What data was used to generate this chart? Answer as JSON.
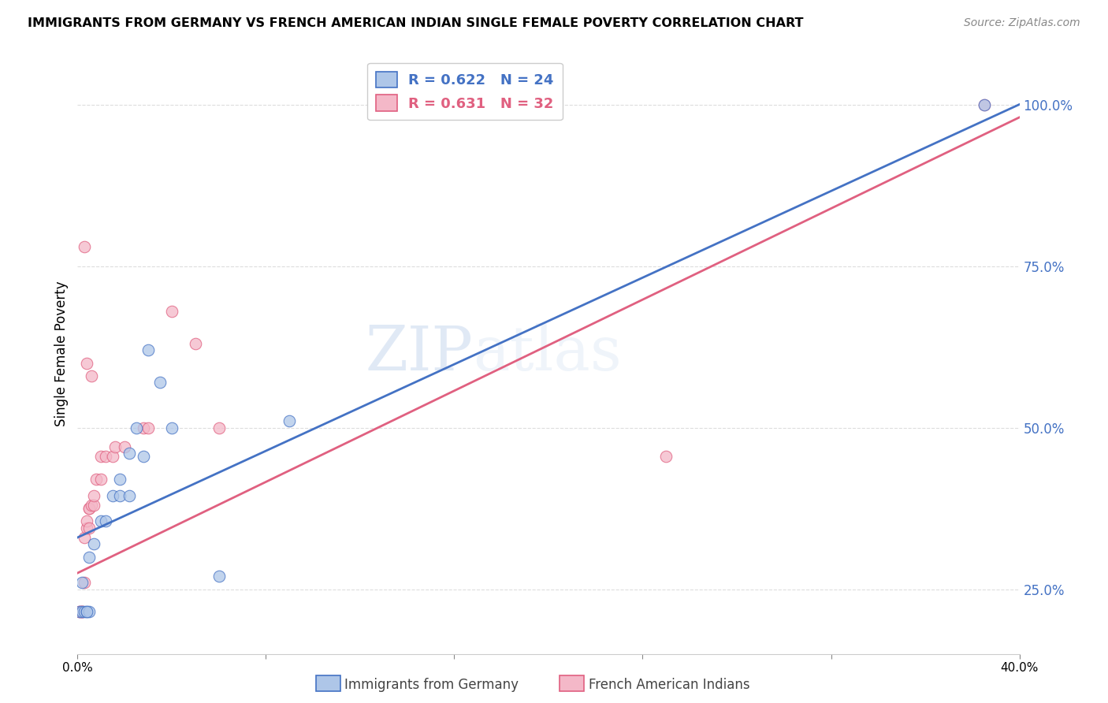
{
  "title": "IMMIGRANTS FROM GERMANY VS FRENCH AMERICAN INDIAN SINGLE FEMALE POVERTY CORRELATION CHART",
  "source": "Source: ZipAtlas.com",
  "xlabel_blue": "Immigrants from Germany",
  "xlabel_pink": "French American Indians",
  "ylabel": "Single Female Poverty",
  "watermark_zip": "ZIP",
  "watermark_atlas": "atlas",
  "blue_R": 0.622,
  "blue_N": 24,
  "pink_R": 0.631,
  "pink_N": 32,
  "xlim": [
    0.0,
    0.4
  ],
  "ylim": [
    0.15,
    1.08
  ],
  "yticks": [
    0.25,
    0.5,
    0.75,
    1.0
  ],
  "ytick_labels": [
    "25.0%",
    "50.0%",
    "75.0%",
    "100.0%"
  ],
  "xticks": [
    0.0,
    0.08,
    0.16,
    0.24,
    0.32,
    0.4
  ],
  "xtick_labels": [
    "0.0%",
    "",
    "",
    "",
    "",
    "40.0%"
  ],
  "blue_color": "#aec6e8",
  "pink_color": "#f4b8c8",
  "blue_line_color": "#4472c4",
  "pink_line_color": "#e06080",
  "blue_scatter": [
    [
      0.001,
      0.215
    ],
    [
      0.002,
      0.215
    ],
    [
      0.003,
      0.215
    ],
    [
      0.004,
      0.215
    ],
    [
      0.005,
      0.215
    ],
    [
      0.004,
      0.215
    ],
    [
      0.002,
      0.26
    ],
    [
      0.005,
      0.3
    ],
    [
      0.007,
      0.32
    ],
    [
      0.01,
      0.355
    ],
    [
      0.012,
      0.355
    ],
    [
      0.015,
      0.395
    ],
    [
      0.018,
      0.395
    ],
    [
      0.022,
      0.395
    ],
    [
      0.018,
      0.42
    ],
    [
      0.022,
      0.46
    ],
    [
      0.025,
      0.5
    ],
    [
      0.028,
      0.455
    ],
    [
      0.03,
      0.62
    ],
    [
      0.035,
      0.57
    ],
    [
      0.04,
      0.5
    ],
    [
      0.06,
      0.27
    ],
    [
      0.09,
      0.51
    ],
    [
      0.385,
      1.0
    ]
  ],
  "pink_scatter": [
    [
      0.001,
      0.215
    ],
    [
      0.001,
      0.215
    ],
    [
      0.002,
      0.215
    ],
    [
      0.002,
      0.215
    ],
    [
      0.003,
      0.26
    ],
    [
      0.003,
      0.33
    ],
    [
      0.004,
      0.345
    ],
    [
      0.004,
      0.355
    ],
    [
      0.005,
      0.345
    ],
    [
      0.005,
      0.375
    ],
    [
      0.005,
      0.375
    ],
    [
      0.006,
      0.38
    ],
    [
      0.007,
      0.38
    ],
    [
      0.007,
      0.395
    ],
    [
      0.008,
      0.42
    ],
    [
      0.01,
      0.42
    ],
    [
      0.01,
      0.455
    ],
    [
      0.012,
      0.455
    ],
    [
      0.015,
      0.455
    ],
    [
      0.016,
      0.47
    ],
    [
      0.02,
      0.47
    ],
    [
      0.028,
      0.5
    ],
    [
      0.03,
      0.5
    ],
    [
      0.04,
      0.68
    ],
    [
      0.05,
      0.63
    ],
    [
      0.06,
      0.5
    ],
    [
      0.006,
      0.58
    ],
    [
      0.003,
      0.78
    ],
    [
      0.004,
      0.6
    ],
    [
      0.25,
      0.455
    ],
    [
      0.385,
      1.0
    ],
    [
      0.002,
      0.215
    ]
  ],
  "blue_line_x": [
    0.0,
    0.4
  ],
  "blue_line_y": [
    0.33,
    1.0
  ],
  "pink_line_x": [
    0.0,
    0.4
  ],
  "pink_line_y": [
    0.275,
    0.98
  ]
}
